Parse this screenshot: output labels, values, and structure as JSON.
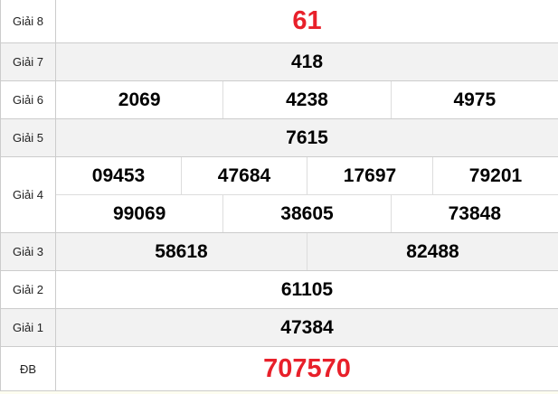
{
  "colors": {
    "highlight": "#e8202a",
    "alt_row": "#f2f2f2"
  },
  "prizes": [
    {
      "label": "Giải 8",
      "rows": [
        [
          "61"
        ]
      ],
      "highlight": true
    },
    {
      "label": "Giải 7",
      "rows": [
        [
          "418"
        ]
      ]
    },
    {
      "label": "Giải 6",
      "rows": [
        [
          "2069",
          "4238",
          "4975"
        ]
      ]
    },
    {
      "label": "Giải 5",
      "rows": [
        [
          "7615"
        ]
      ]
    },
    {
      "label": "Giải 4",
      "rows": [
        [
          "09453",
          "47684",
          "17697",
          "79201"
        ],
        [
          "99069",
          "38605",
          "73848"
        ]
      ]
    },
    {
      "label": "Giải 3",
      "rows": [
        [
          "58618",
          "82488"
        ]
      ]
    },
    {
      "label": "Giải 2",
      "rows": [
        [
          "61105"
        ]
      ]
    },
    {
      "label": "Giải 1",
      "rows": [
        [
          "47384"
        ]
      ]
    },
    {
      "label": "ĐB",
      "rows": [
        [
          "707570"
        ]
      ],
      "highlight": true
    }
  ]
}
